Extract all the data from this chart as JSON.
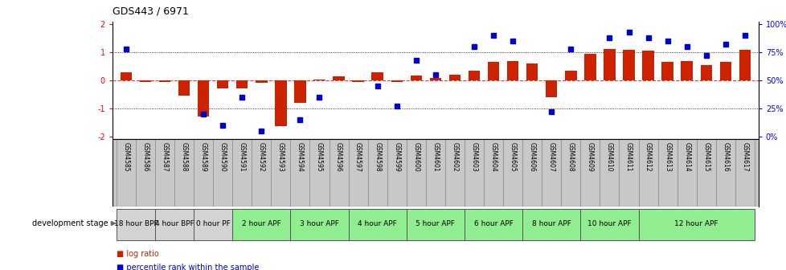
{
  "title": "GDS443 / 6971",
  "samples": [
    "GSM4585",
    "GSM4586",
    "GSM4587",
    "GSM4588",
    "GSM4589",
    "GSM4590",
    "GSM4591",
    "GSM4592",
    "GSM4593",
    "GSM4594",
    "GSM4595",
    "GSM4596",
    "GSM4597",
    "GSM4598",
    "GSM4599",
    "GSM4600",
    "GSM4601",
    "GSM4602",
    "GSM4603",
    "GSM4604",
    "GSM4605",
    "GSM4606",
    "GSM4607",
    "GSM4608",
    "GSM4609",
    "GSM4610",
    "GSM4611",
    "GSM4612",
    "GSM4613",
    "GSM4614",
    "GSM4615",
    "GSM4616",
    "GSM4617"
  ],
  "log_ratio": [
    0.3,
    -0.07,
    -0.07,
    -0.55,
    -1.28,
    -0.3,
    -0.3,
    -0.1,
    -1.65,
    -0.8,
    0.02,
    0.15,
    -0.05,
    0.28,
    -0.05,
    0.18,
    0.08,
    0.2,
    0.35,
    0.65,
    0.7,
    0.6,
    -0.6,
    0.35,
    0.95,
    1.12,
    1.1,
    1.05,
    0.65,
    0.7,
    0.55,
    0.65,
    1.1
  ],
  "percentile_vals": [
    78,
    null,
    null,
    null,
    20,
    10,
    35,
    5,
    null,
    15,
    35,
    null,
    null,
    45,
    27,
    68,
    55,
    null,
    80,
    90,
    85,
    null,
    22,
    78,
    null,
    88,
    93,
    88,
    85,
    80,
    72,
    82,
    90
  ],
  "stages": [
    {
      "label": "18 hour BPF",
      "start": 0,
      "end": 2,
      "color": "#d3d3d3"
    },
    {
      "label": "4 hour BPF",
      "start": 2,
      "end": 4,
      "color": "#d3d3d3"
    },
    {
      "label": "0 hour PF",
      "start": 4,
      "end": 6,
      "color": "#d3d3d3"
    },
    {
      "label": "2 hour APF",
      "start": 6,
      "end": 9,
      "color": "#90ee90"
    },
    {
      "label": "3 hour APF",
      "start": 9,
      "end": 12,
      "color": "#90ee90"
    },
    {
      "label": "4 hour APF",
      "start": 12,
      "end": 15,
      "color": "#90ee90"
    },
    {
      "label": "5 hour APF",
      "start": 15,
      "end": 18,
      "color": "#90ee90"
    },
    {
      "label": "6 hour APF",
      "start": 18,
      "end": 21,
      "color": "#90ee90"
    },
    {
      "label": "8 hour APF",
      "start": 21,
      "end": 24,
      "color": "#90ee90"
    },
    {
      "label": "10 hour APF",
      "start": 24,
      "end": 27,
      "color": "#90ee90"
    },
    {
      "label": "12 hour APF",
      "start": 27,
      "end": 33,
      "color": "#90ee90"
    }
  ],
  "bar_color": "#cc2200",
  "dot_color": "#0000cc",
  "sample_box_color": "#c8c8c8",
  "background_color": "#ffffff"
}
